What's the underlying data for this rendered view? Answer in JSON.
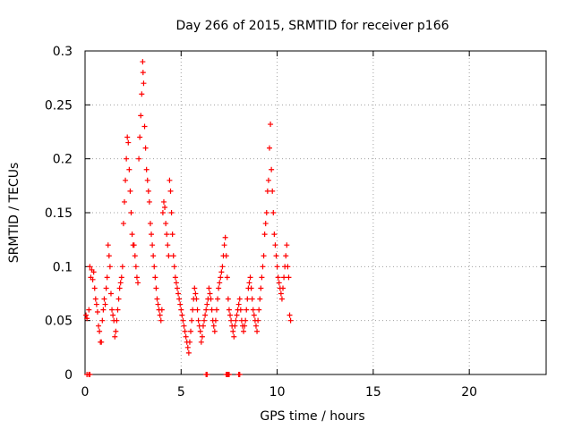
{
  "chart_data": {
    "type": "scatter",
    "title": "Day 266 of 2015, SRMTID for receiver p166",
    "xlabel": "GPS time / hours",
    "ylabel": "SRMTID / TECUs",
    "xlim": [
      0,
      24
    ],
    "ylim": [
      0,
      0.3
    ],
    "grid": true,
    "marker": "+",
    "x_ticks": [
      0,
      5,
      10,
      15,
      20
    ],
    "x_tick_labels": [
      "0",
      "5",
      "10",
      "15",
      "20"
    ],
    "y_ticks": [
      0,
      0.05,
      0.1,
      0.15,
      0.2,
      0.25,
      0.3
    ],
    "y_tick_labels": [
      "0",
      "0.05",
      "0.1",
      "0.15",
      "0.2",
      "0.25",
      "0.3"
    ],
    "series": [
      {
        "name": "SRMTID",
        "color": "#ff0000",
        "points": [
          [
            0.05,
            0.055
          ],
          [
            0.1,
            0.052
          ],
          [
            0.2,
            0.06
          ],
          [
            0.25,
            0.1
          ],
          [
            0.3,
            0.09
          ],
          [
            0.35,
            0.097
          ],
          [
            0.4,
            0.088
          ],
          [
            0.45,
            0.095
          ],
          [
            0.5,
            0.08
          ],
          [
            0.55,
            0.07
          ],
          [
            0.6,
            0.065
          ],
          [
            0.65,
            0.058
          ],
          [
            0.7,
            0.045
          ],
          [
            0.75,
            0.04
          ],
          [
            0.8,
            0.03
          ],
          [
            0.85,
            0.03
          ],
          [
            0.9,
            0.05
          ],
          [
            0.95,
            0.06
          ],
          [
            1.0,
            0.07
          ],
          [
            1.05,
            0.065
          ],
          [
            1.1,
            0.08
          ],
          [
            1.15,
            0.09
          ],
          [
            1.2,
            0.12
          ],
          [
            1.25,
            0.11
          ],
          [
            1.3,
            0.1
          ],
          [
            1.35,
            0.075
          ],
          [
            1.4,
            0.06
          ],
          [
            1.45,
            0.055
          ],
          [
            1.5,
            0.05
          ],
          [
            1.55,
            0.035
          ],
          [
            1.6,
            0.04
          ],
          [
            1.65,
            0.05
          ],
          [
            1.7,
            0.06
          ],
          [
            1.75,
            0.07
          ],
          [
            1.8,
            0.08
          ],
          [
            1.85,
            0.085
          ],
          [
            1.9,
            0.09
          ],
          [
            1.95,
            0.1
          ],
          [
            2.0,
            0.14
          ],
          [
            2.05,
            0.16
          ],
          [
            2.1,
            0.18
          ],
          [
            2.15,
            0.2
          ],
          [
            2.2,
            0.22
          ],
          [
            2.25,
            0.215
          ],
          [
            2.3,
            0.19
          ],
          [
            2.35,
            0.17
          ],
          [
            2.4,
            0.15
          ],
          [
            2.45,
            0.13
          ],
          [
            2.5,
            0.12
          ],
          [
            2.55,
            0.12
          ],
          [
            2.6,
            0.11
          ],
          [
            2.65,
            0.1
          ],
          [
            2.7,
            0.09
          ],
          [
            2.75,
            0.085
          ],
          [
            2.8,
            0.2
          ],
          [
            2.85,
            0.22
          ],
          [
            2.9,
            0.24
          ],
          [
            2.95,
            0.26
          ],
          [
            3.0,
            0.29
          ],
          [
            3.02,
            0.28
          ],
          [
            3.05,
            0.27
          ],
          [
            3.1,
            0.23
          ],
          [
            3.15,
            0.21
          ],
          [
            3.2,
            0.19
          ],
          [
            3.25,
            0.18
          ],
          [
            3.3,
            0.17
          ],
          [
            3.35,
            0.16
          ],
          [
            3.4,
            0.14
          ],
          [
            3.45,
            0.13
          ],
          [
            3.5,
            0.12
          ],
          [
            3.55,
            0.11
          ],
          [
            3.6,
            0.1
          ],
          [
            3.65,
            0.09
          ],
          [
            3.7,
            0.08
          ],
          [
            3.75,
            0.07
          ],
          [
            3.8,
            0.065
          ],
          [
            3.85,
            0.06
          ],
          [
            3.9,
            0.055
          ],
          [
            3.95,
            0.05
          ],
          [
            4.0,
            0.06
          ],
          [
            4.05,
            0.15
          ],
          [
            4.1,
            0.16
          ],
          [
            4.15,
            0.155
          ],
          [
            4.2,
            0.14
          ],
          [
            4.25,
            0.13
          ],
          [
            4.3,
            0.12
          ],
          [
            4.35,
            0.11
          ],
          [
            4.4,
            0.18
          ],
          [
            4.45,
            0.17
          ],
          [
            4.5,
            0.15
          ],
          [
            4.55,
            0.13
          ],
          [
            4.6,
            0.11
          ],
          [
            4.65,
            0.1
          ],
          [
            4.7,
            0.09
          ],
          [
            4.75,
            0.085
          ],
          [
            4.8,
            0.08
          ],
          [
            4.85,
            0.075
          ],
          [
            4.9,
            0.07
          ],
          [
            4.95,
            0.065
          ],
          [
            5.0,
            0.06
          ],
          [
            5.05,
            0.055
          ],
          [
            5.1,
            0.05
          ],
          [
            5.15,
            0.045
          ],
          [
            5.2,
            0.04
          ],
          [
            5.25,
            0.035
          ],
          [
            5.3,
            0.03
          ],
          [
            5.35,
            0.025
          ],
          [
            5.4,
            0.02
          ],
          [
            5.45,
            0.03
          ],
          [
            5.5,
            0.04
          ],
          [
            5.55,
            0.05
          ],
          [
            5.6,
            0.06
          ],
          [
            5.65,
            0.07
          ],
          [
            5.7,
            0.08
          ],
          [
            5.75,
            0.075
          ],
          [
            5.8,
            0.07
          ],
          [
            5.85,
            0.06
          ],
          [
            5.9,
            0.05
          ],
          [
            5.95,
            0.045
          ],
          [
            6.0,
            0.04
          ],
          [
            6.05,
            0.03
          ],
          [
            6.1,
            0.035
          ],
          [
            6.15,
            0.045
          ],
          [
            6.2,
            0.05
          ],
          [
            6.25,
            0.055
          ],
          [
            6.3,
            0.06
          ],
          [
            6.35,
            0.065
          ],
          [
            6.4,
            0.07
          ],
          [
            6.45,
            0.08
          ],
          [
            6.5,
            0.075
          ],
          [
            6.55,
            0.07
          ],
          [
            6.6,
            0.06
          ],
          [
            6.65,
            0.05
          ],
          [
            6.7,
            0.045
          ],
          [
            6.75,
            0.04
          ],
          [
            6.8,
            0.05
          ],
          [
            6.85,
            0.06
          ],
          [
            6.9,
            0.07
          ],
          [
            6.95,
            0.08
          ],
          [
            7.0,
            0.085
          ],
          [
            7.05,
            0.09
          ],
          [
            7.1,
            0.095
          ],
          [
            7.15,
            0.1
          ],
          [
            7.2,
            0.11
          ],
          [
            7.25,
            0.12
          ],
          [
            7.3,
            0.127
          ],
          [
            7.35,
            0.11
          ],
          [
            7.4,
            0.09
          ],
          [
            7.45,
            0.07
          ],
          [
            7.5,
            0.06
          ],
          [
            7.55,
            0.055
          ],
          [
            7.6,
            0.05
          ],
          [
            7.65,
            0.045
          ],
          [
            7.7,
            0.04
          ],
          [
            7.75,
            0.035
          ],
          [
            7.8,
            0.045
          ],
          [
            7.85,
            0.05
          ],
          [
            7.9,
            0.055
          ],
          [
            7.95,
            0.06
          ],
          [
            8.0,
            0.065
          ],
          [
            8.05,
            0.07
          ],
          [
            8.1,
            0.06
          ],
          [
            8.15,
            0.05
          ],
          [
            8.2,
            0.045
          ],
          [
            8.25,
            0.04
          ],
          [
            8.3,
            0.045
          ],
          [
            8.35,
            0.05
          ],
          [
            8.4,
            0.06
          ],
          [
            8.45,
            0.07
          ],
          [
            8.5,
            0.08
          ],
          [
            8.55,
            0.085
          ],
          [
            8.6,
            0.09
          ],
          [
            8.65,
            0.08
          ],
          [
            8.7,
            0.07
          ],
          [
            8.75,
            0.06
          ],
          [
            8.8,
            0.055
          ],
          [
            8.85,
            0.05
          ],
          [
            8.9,
            0.045
          ],
          [
            8.95,
            0.04
          ],
          [
            9.0,
            0.05
          ],
          [
            9.05,
            0.06
          ],
          [
            9.1,
            0.07
          ],
          [
            9.15,
            0.08
          ],
          [
            9.2,
            0.09
          ],
          [
            9.25,
            0.1
          ],
          [
            9.3,
            0.11
          ],
          [
            9.35,
            0.13
          ],
          [
            9.4,
            0.14
          ],
          [
            9.45,
            0.15
          ],
          [
            9.5,
            0.17
          ],
          [
            9.55,
            0.18
          ],
          [
            9.6,
            0.21
          ],
          [
            9.65,
            0.232
          ],
          [
            9.7,
            0.19
          ],
          [
            9.75,
            0.17
          ],
          [
            9.8,
            0.15
          ],
          [
            9.85,
            0.13
          ],
          [
            9.9,
            0.12
          ],
          [
            9.95,
            0.11
          ],
          [
            10.0,
            0.1
          ],
          [
            10.05,
            0.09
          ],
          [
            10.1,
            0.085
          ],
          [
            10.15,
            0.08
          ],
          [
            10.2,
            0.075
          ],
          [
            10.25,
            0.07
          ],
          [
            10.3,
            0.08
          ],
          [
            10.35,
            0.09
          ],
          [
            10.4,
            0.1
          ],
          [
            10.45,
            0.11
          ],
          [
            10.5,
            0.12
          ],
          [
            10.55,
            0.1
          ],
          [
            10.6,
            0.09
          ],
          [
            10.65,
            0.055
          ],
          [
            10.7,
            0.05
          ],
          [
            0.1,
            0.0
          ],
          [
            0.2,
            0.0
          ],
          [
            0.25,
            0.0
          ],
          [
            6.3,
            0.0
          ],
          [
            6.35,
            0.0
          ],
          [
            7.35,
            0.0
          ],
          [
            7.4,
            0.0
          ],
          [
            7.45,
            0.0
          ],
          [
            7.5,
            0.0
          ],
          [
            8.0,
            0.0
          ],
          [
            8.05,
            0.0
          ]
        ]
      }
    ]
  }
}
